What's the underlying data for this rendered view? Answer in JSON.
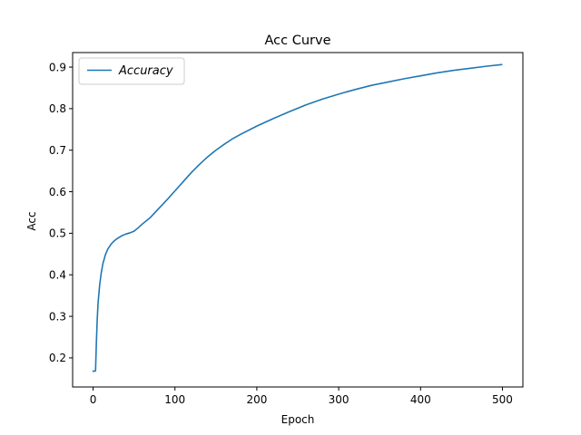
{
  "chart_data": {
    "type": "line",
    "title": "Acc Curve",
    "xlabel": "Epoch",
    "ylabel": "Acc",
    "xlim": [
      -25,
      525
    ],
    "ylim": [
      0.13,
      0.935
    ],
    "xticks": [
      0,
      100,
      200,
      300,
      400,
      500
    ],
    "yticks": [
      0.2,
      0.3,
      0.4,
      0.5,
      0.6,
      0.7,
      0.8,
      0.9
    ],
    "grid": false,
    "legend_position": "upper-left",
    "series": [
      {
        "name": "Accuracy",
        "color": "#1f77b4",
        "x": [
          0,
          2,
          3,
          4,
          5,
          6,
          8,
          10,
          12,
          15,
          18,
          22,
          26,
          30,
          35,
          40,
          45,
          50,
          55,
          60,
          70,
          80,
          90,
          100,
          110,
          120,
          130,
          140,
          150,
          160,
          170,
          180,
          200,
          220,
          240,
          260,
          280,
          300,
          320,
          340,
          360,
          380,
          400,
          420,
          440,
          460,
          480,
          499
        ],
        "y": [
          0.168,
          0.168,
          0.169,
          0.235,
          0.29,
          0.33,
          0.375,
          0.405,
          0.427,
          0.448,
          0.462,
          0.474,
          0.482,
          0.488,
          0.494,
          0.498,
          0.501,
          0.505,
          0.513,
          0.522,
          0.538,
          0.559,
          0.58,
          0.602,
          0.624,
          0.646,
          0.666,
          0.684,
          0.7,
          0.714,
          0.727,
          0.738,
          0.758,
          0.776,
          0.793,
          0.809,
          0.823,
          0.835,
          0.846,
          0.856,
          0.864,
          0.872,
          0.879,
          0.886,
          0.892,
          0.897,
          0.902,
          0.906
        ]
      }
    ]
  }
}
